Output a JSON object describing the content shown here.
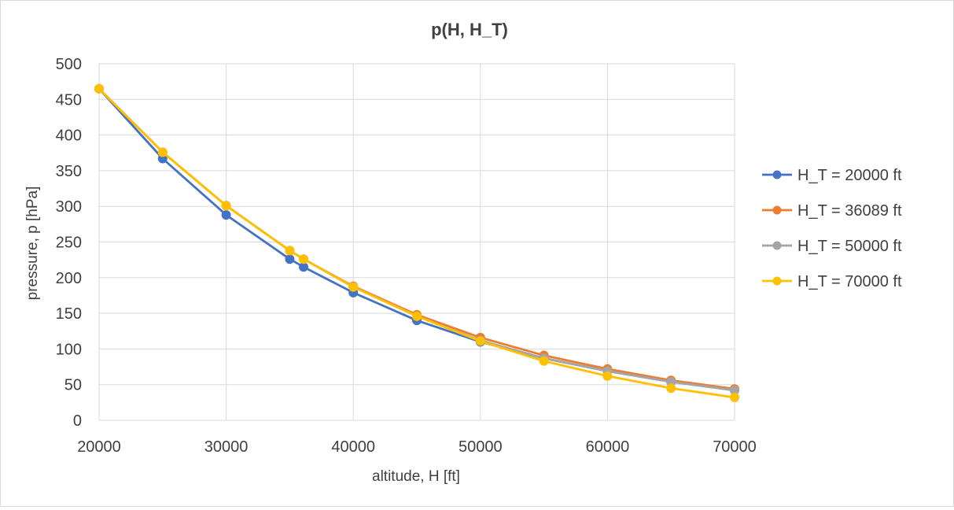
{
  "chart_data": {
    "type": "line",
    "title": "p(H, H_T)",
    "xlabel": "altitude, H [ft]",
    "ylabel": "pressure, p [hPa]",
    "xlim": [
      20000,
      70000
    ],
    "ylim": [
      0,
      500
    ],
    "x_ticks": [
      20000,
      30000,
      40000,
      50000,
      60000,
      70000
    ],
    "y_ticks": [
      0,
      50,
      100,
      150,
      200,
      250,
      300,
      350,
      400,
      450,
      500
    ],
    "grid": true,
    "legend_position": "right",
    "series": [
      {
        "name": "H_T = 20000 ft",
        "color": "#4472C4",
        "points": [
          [
            20000,
            465
          ],
          [
            25000,
            367
          ],
          [
            30000,
            288
          ],
          [
            35000,
            226
          ],
          [
            36089,
            215
          ],
          [
            40000,
            179
          ],
          [
            45000,
            140
          ],
          [
            50000,
            110
          ],
          [
            55000,
            87
          ],
          [
            60000,
            69
          ],
          [
            65000,
            54
          ],
          [
            70000,
            42
          ]
        ]
      },
      {
        "name": "H_T = 36089 ft",
        "color": "#ED7D31",
        "points": [
          [
            20000,
            465
          ],
          [
            25000,
            376
          ],
          [
            30000,
            301
          ],
          [
            35000,
            238
          ],
          [
            36089,
            226
          ],
          [
            40000,
            188
          ],
          [
            45000,
            148
          ],
          [
            50000,
            116
          ],
          [
            55000,
            91
          ],
          [
            60000,
            72
          ],
          [
            65000,
            56
          ],
          [
            70000,
            44
          ]
        ]
      },
      {
        "name": "H_T = 50000 ft",
        "color": "#A5A5A5",
        "points": [
          [
            20000,
            465
          ],
          [
            25000,
            376
          ],
          [
            30000,
            301
          ],
          [
            35000,
            238
          ],
          [
            36089,
            226
          ],
          [
            40000,
            187
          ],
          [
            45000,
            146
          ],
          [
            50000,
            112
          ],
          [
            55000,
            87
          ],
          [
            60000,
            69
          ],
          [
            65000,
            54
          ],
          [
            70000,
            42
          ]
        ]
      },
      {
        "name": "H_T = 70000 ft",
        "color": "#FFC000",
        "points": [
          [
            20000,
            465
          ],
          [
            25000,
            376
          ],
          [
            30000,
            301
          ],
          [
            35000,
            238
          ],
          [
            36089,
            226
          ],
          [
            40000,
            187
          ],
          [
            45000,
            146
          ],
          [
            50000,
            111
          ],
          [
            55000,
            83
          ],
          [
            60000,
            62
          ],
          [
            65000,
            45
          ],
          [
            70000,
            32
          ]
        ]
      }
    ]
  }
}
